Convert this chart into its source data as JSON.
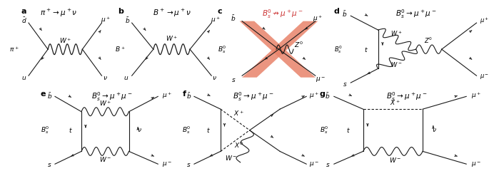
{
  "bg_color": "#ffffff",
  "line_color": "#1a1a1a",
  "arrow_color": "#1a1a1a",
  "wavy_color": "#1a1a1a",
  "cross_fill_color": "#e8836a",
  "cross_edge_color": "#d96040",
  "label_color": "#1a1a1a",
  "panel_labels": [
    "a",
    "b",
    "c",
    "d",
    "e",
    "f",
    "g"
  ],
  "titles": [
    "$\\pi^+ \\to \\mu^+\\nu$",
    "$B^+ \\to \\mu^+\\nu$",
    "$B_s^0 \\nrightarrow \\mu^+\\mu^-$",
    "$B_s^0 \\to \\mu^+\\mu^-$",
    "$B_s^0 \\to \\mu^+\\mu^-$",
    "$B_s^0 \\to \\mu^+\\mu^-$",
    "$B_s^0 \\to \\mu^+\\mu^-$"
  ],
  "font_size_title": 7.5,
  "font_size_label": 8,
  "font_size_particle": 6.5
}
